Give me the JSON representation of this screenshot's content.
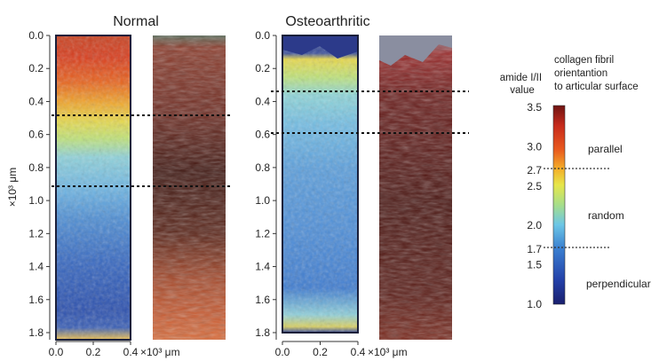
{
  "panels": {
    "normal": {
      "title": "Normal",
      "ticks": [
        "0.0",
        "0.2",
        "0.4",
        "0.6",
        "0.8",
        "1.0",
        "1.2",
        "1.4",
        "1.6",
        "1.8"
      ],
      "x_ticks": [
        "0.0",
        "0.2",
        "0.4"
      ]
    },
    "oa": {
      "title": "Osteoarthritic",
      "ticks": [
        "0.0",
        "0.2",
        "0.4",
        "0.6",
        "0.8",
        "1.0",
        "1.2",
        "1.4",
        "1.6",
        "1.8"
      ],
      "x_ticks": [
        "0.0",
        "0.2",
        "0.4"
      ]
    }
  },
  "axes": {
    "y_label": "×10³ μm",
    "x_unit": "×10³ μm"
  },
  "colorbar": {
    "header_value": "amide I/II\nvalue",
    "header_orientation": "collagen fibril\norientantion\nto articular surface",
    "ticks": [
      "3.5",
      "3.0",
      "2.7",
      "2.5",
      "2.0",
      "1.7",
      "1.5",
      "1.0"
    ],
    "labels": {
      "parallel": "parallel",
      "random": "random",
      "perpendicular": "perpendicular"
    }
  }
}
